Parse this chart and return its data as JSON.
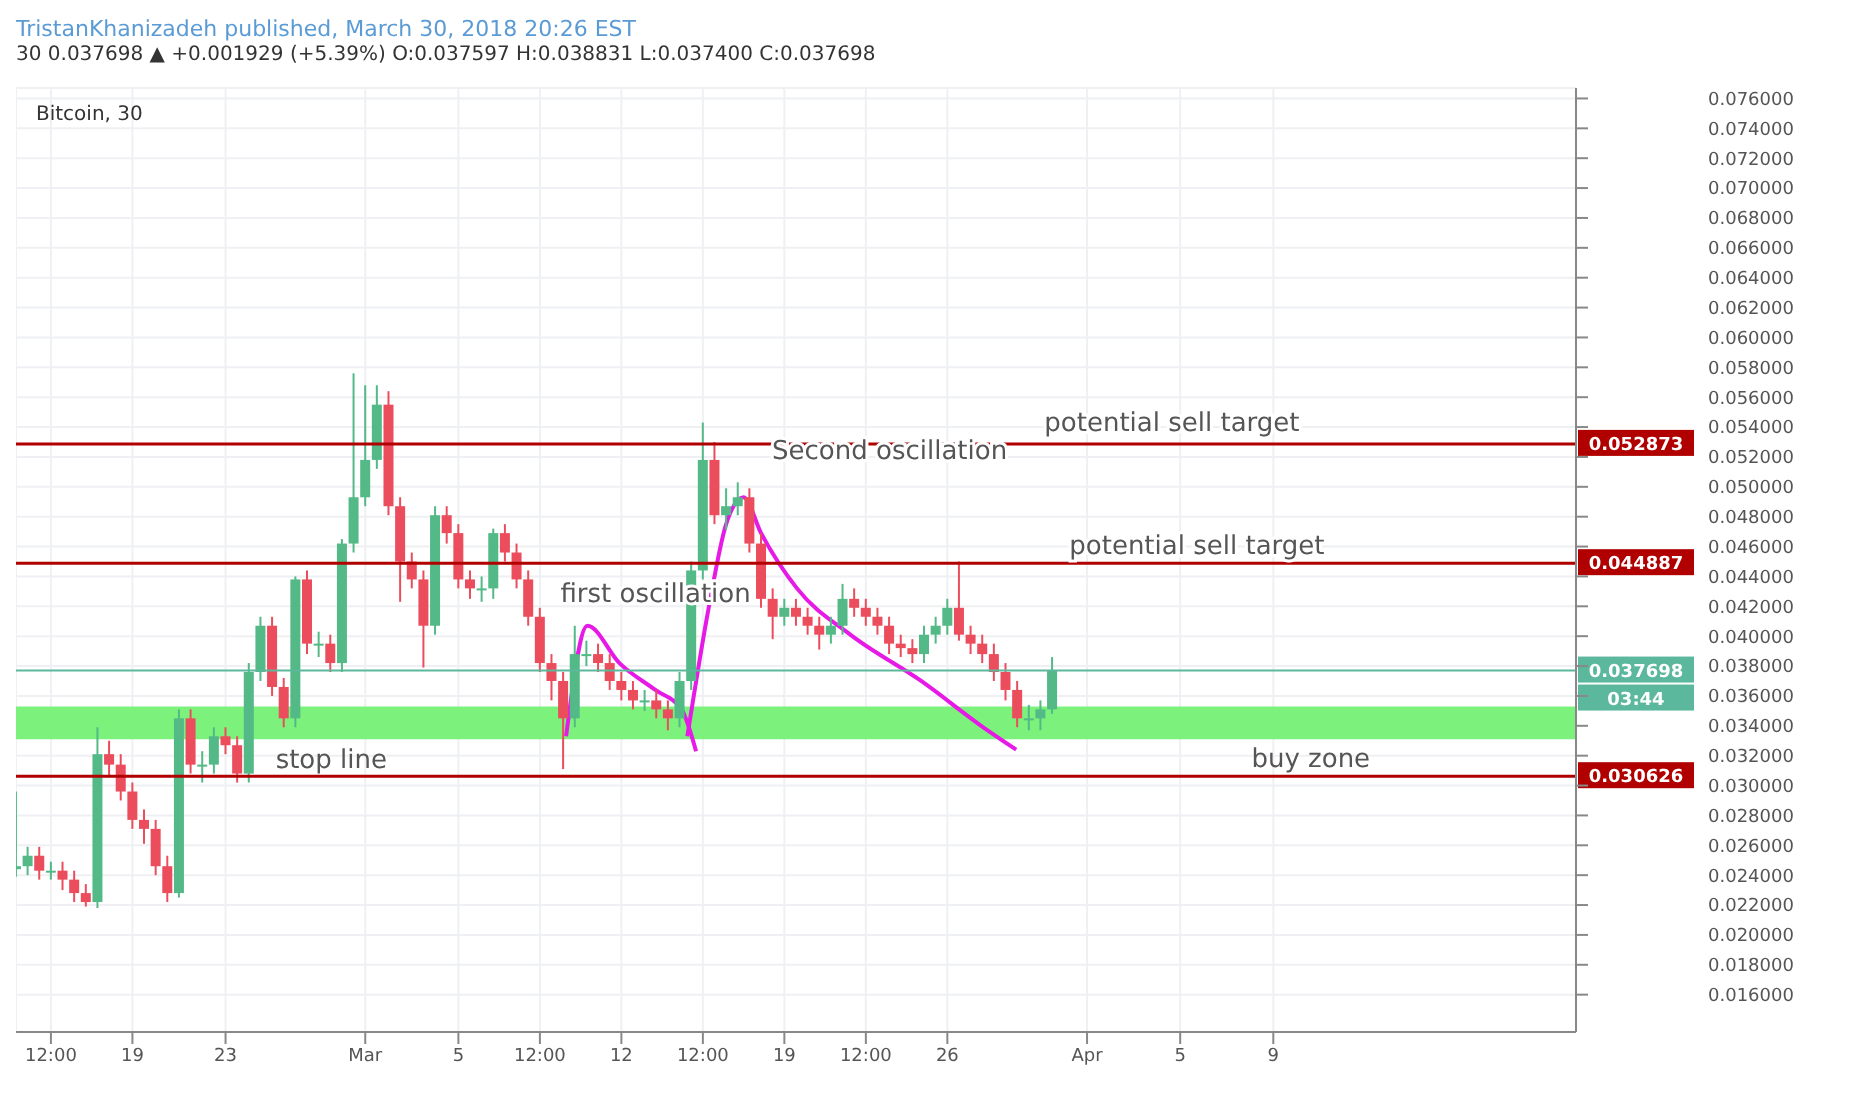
{
  "chart_data": {
    "type": "candlestick",
    "title": "Bitcoin, 30",
    "subtitle": "TristanKhanizadeh published, March 30, 2018 20:26 EST",
    "annotations": [
      "30 0.037698 ▲ +0.001929 (+5.39%) O:0.037597 H:0.038831 L:0.037400 C:0.037698",
      "03:44",
      {
        "text": "stop line",
        "x": "2018-02-27T13:00",
        "y": 0.0312
      },
      "first oscillation",
      "Second oscillation",
      "potential sell target",
      "potential sell target"
    ],
    "x": [
      "2018-02-14T00:00",
      "2018-02-14T12:00",
      "2018-02-15T00:00",
      "2018-02-15T12:00",
      "2018-02-16T00:00",
      "2018-02-16T12:00",
      "2018-02-17T00:00",
      "2018-02-17T12:00",
      "2018-02-18T00:00",
      "2018-02-18T12:00",
      "2018-02-19T00:00",
      "2018-02-19T12:00",
      "2018-02-20T00:00",
      "2018-02-20T12:00",
      "2018-02-21T00:00",
      "2018-02-21T12:00",
      "2018-02-22T00:00",
      "2018-02-22T12:00",
      "2018-02-23T00:00",
      "2018-02-23T12:00",
      "2018-02-24T00:00",
      "2018-02-24T12:00",
      "2018-02-25T00:00",
      "2018-02-25T12:00",
      "2018-02-26T00:00",
      "2018-02-26T12:00",
      "2018-02-27T00:00",
      "2018-02-27T12:00",
      "2018-02-28T00:00",
      "2018-02-28T12:00",
      "2018-03-01T00:00",
      "2018-03-01T12:00",
      "2018-03-02T00:00",
      "2018-03-02T12:00",
      "2018-03-03T00:00",
      "2018-03-03T12:00",
      "2018-03-04T00:00",
      "2018-03-04T12:00",
      "2018-03-05T00:00",
      "2018-03-05T12:00",
      "2018-03-06T00:00",
      "2018-03-06T12:00",
      "2018-03-07T00:00",
      "2018-03-07T12:00",
      "2018-03-08T00:00",
      "2018-03-08T12:00",
      "2018-03-09T00:00",
      "2018-03-09T12:00",
      "2018-03-10T00:00",
      "2018-03-10T12:00",
      "2018-03-11T00:00",
      "2018-03-11T12:00",
      "2018-03-12T00:00",
      "2018-03-12T12:00",
      "2018-03-13T00:00",
      "2018-03-13T12:00",
      "2018-03-14T00:00",
      "2018-03-14T12:00",
      "2018-03-15T00:00",
      "2018-03-15T12:00",
      "2018-03-16T00:00",
      "2018-03-16T12:00",
      "2018-03-17T00:00",
      "2018-03-17T12:00",
      "2018-03-18T00:00",
      "2018-03-18T12:00",
      "2018-03-19T00:00",
      "2018-03-19T12:00",
      "2018-03-20T00:00",
      "2018-03-20T12:00",
      "2018-03-21T00:00",
      "2018-03-21T12:00",
      "2018-03-22T00:00",
      "2018-03-22T12:00",
      "2018-03-23T00:00",
      "2018-03-23T12:00",
      "2018-03-24T00:00",
      "2018-03-24T12:00",
      "2018-03-25T00:00",
      "2018-03-25T12:00",
      "2018-03-26T00:00",
      "2018-03-26T12:00",
      "2018-03-27T00:00",
      "2018-03-27T12:00",
      "2018-03-28T00:00",
      "2018-03-28T12:00",
      "2018-03-29T00:00",
      "2018-03-29T12:00",
      "2018-03-30T00:00",
      "2018-03-30T12:00"
    ],
    "ohlc": [
      [
        0.0244,
        0.0296,
        0.0239,
        0.0246
      ],
      [
        0.0246,
        0.0259,
        0.024,
        0.0253
      ],
      [
        0.0253,
        0.0259,
        0.0237,
        0.0243
      ],
      [
        0.0243,
        0.0249,
        0.0237,
        0.0243
      ],
      [
        0.0243,
        0.0249,
        0.023,
        0.0237
      ],
      [
        0.0237,
        0.0243,
        0.0222,
        0.0228
      ],
      [
        0.0228,
        0.0234,
        0.0219,
        0.0222
      ],
      [
        0.0222,
        0.0339,
        0.0218,
        0.0321
      ],
      [
        0.0321,
        0.033,
        0.0306,
        0.0314
      ],
      [
        0.0314,
        0.0321,
        0.029,
        0.0296
      ],
      [
        0.0296,
        0.0302,
        0.0271,
        0.0277
      ],
      [
        0.0277,
        0.0284,
        0.0261,
        0.0271
      ],
      [
        0.0271,
        0.0277,
        0.024,
        0.0246
      ],
      [
        0.0246,
        0.0253,
        0.0222,
        0.0228
      ],
      [
        0.0228,
        0.0351,
        0.0225,
        0.0345
      ],
      [
        0.0345,
        0.0351,
        0.0308,
        0.0314
      ],
      [
        0.0314,
        0.0323,
        0.0302,
        0.0314
      ],
      [
        0.0314,
        0.0339,
        0.0308,
        0.0333
      ],
      [
        0.0333,
        0.0339,
        0.0321,
        0.0327
      ],
      [
        0.0327,
        0.0333,
        0.0302,
        0.0308
      ],
      [
        0.0308,
        0.0382,
        0.0302,
        0.0376
      ],
      [
        0.0376,
        0.0413,
        0.037,
        0.0407
      ],
      [
        0.0407,
        0.0413,
        0.036,
        0.0366
      ],
      [
        0.0366,
        0.0372,
        0.0339,
        0.0345
      ],
      [
        0.0345,
        0.044,
        0.0339,
        0.0438
      ],
      [
        0.0438,
        0.0444,
        0.0388,
        0.0395
      ],
      [
        0.0395,
        0.0403,
        0.0386,
        0.0395
      ],
      [
        0.0395,
        0.0401,
        0.0376,
        0.0382
      ],
      [
        0.0382,
        0.0465,
        0.0376,
        0.0462
      ],
      [
        0.0462,
        0.0576,
        0.0456,
        0.0493
      ],
      [
        0.0493,
        0.0568,
        0.0487,
        0.0518
      ],
      [
        0.0518,
        0.0568,
        0.0512,
        0.0555
      ],
      [
        0.0555,
        0.0564,
        0.0481,
        0.0487
      ],
      [
        0.0487,
        0.0493,
        0.0423,
        0.045
      ],
      [
        0.045,
        0.0456,
        0.0432,
        0.0438
      ],
      [
        0.0438,
        0.0444,
        0.0379,
        0.0407
      ],
      [
        0.0407,
        0.0487,
        0.0401,
        0.0481
      ],
      [
        0.0481,
        0.0487,
        0.0462,
        0.0469
      ],
      [
        0.0469,
        0.0475,
        0.0432,
        0.0438
      ],
      [
        0.0438,
        0.0444,
        0.0425,
        0.0432
      ],
      [
        0.0432,
        0.044,
        0.0423,
        0.0432
      ],
      [
        0.0432,
        0.0472,
        0.0425,
        0.0469
      ],
      [
        0.0469,
        0.0475,
        0.045,
        0.0456
      ],
      [
        0.0456,
        0.0462,
        0.0432,
        0.0438
      ],
      [
        0.0438,
        0.0444,
        0.0407,
        0.0413
      ],
      [
        0.0413,
        0.0419,
        0.0376,
        0.0382
      ],
      [
        0.0382,
        0.0388,
        0.0357,
        0.037
      ],
      [
        0.037,
        0.0376,
        0.0311,
        0.0345
      ],
      [
        0.0345,
        0.0407,
        0.0339,
        0.0388
      ],
      [
        0.0388,
        0.0397,
        0.038,
        0.0388
      ],
      [
        0.0388,
        0.0395,
        0.0376,
        0.0382
      ],
      [
        0.0382,
        0.0388,
        0.0364,
        0.037
      ],
      [
        0.037,
        0.0376,
        0.0357,
        0.0364
      ],
      [
        0.0364,
        0.037,
        0.0351,
        0.0357
      ],
      [
        0.0357,
        0.0364,
        0.035,
        0.0357
      ],
      [
        0.0357,
        0.0364,
        0.0345,
        0.0351
      ],
      [
        0.0351,
        0.0357,
        0.0337,
        0.0345
      ],
      [
        0.0345,
        0.0376,
        0.0339,
        0.037
      ],
      [
        0.037,
        0.045,
        0.0364,
        0.0444
      ],
      [
        0.0444,
        0.0543,
        0.0438,
        0.0518
      ],
      [
        0.0518,
        0.053,
        0.0475,
        0.0481
      ],
      [
        0.0481,
        0.0499,
        0.0471,
        0.0487
      ],
      [
        0.0487,
        0.0503,
        0.0481,
        0.0493
      ],
      [
        0.0493,
        0.0499,
        0.0456,
        0.0462
      ],
      [
        0.0462,
        0.0469,
        0.0419,
        0.0425
      ],
      [
        0.0425,
        0.0432,
        0.0398,
        0.0413
      ],
      [
        0.0413,
        0.0425,
        0.0407,
        0.0419
      ],
      [
        0.0419,
        0.0425,
        0.0407,
        0.0413
      ],
      [
        0.0413,
        0.0419,
        0.0401,
        0.0407
      ],
      [
        0.0407,
        0.0413,
        0.0391,
        0.0401
      ],
      [
        0.0401,
        0.0413,
        0.0395,
        0.0407
      ],
      [
        0.0407,
        0.0435,
        0.0401,
        0.0425
      ],
      [
        0.0425,
        0.0432,
        0.0413,
        0.0419
      ],
      [
        0.0419,
        0.0425,
        0.0407,
        0.0413
      ],
      [
        0.0413,
        0.0419,
        0.0401,
        0.0407
      ],
      [
        0.0407,
        0.0413,
        0.0388,
        0.0395
      ],
      [
        0.0395,
        0.0401,
        0.0386,
        0.0392
      ],
      [
        0.0392,
        0.0398,
        0.0382,
        0.0388
      ],
      [
        0.0388,
        0.0407,
        0.0382,
        0.0401
      ],
      [
        0.0401,
        0.0413,
        0.0395,
        0.0407
      ],
      [
        0.0407,
        0.0425,
        0.0401,
        0.0419
      ],
      [
        0.0419,
        0.045,
        0.0397,
        0.0401
      ],
      [
        0.0401,
        0.0407,
        0.0388,
        0.0395
      ],
      [
        0.0395,
        0.0401,
        0.0382,
        0.0388
      ],
      [
        0.0388,
        0.0395,
        0.037,
        0.0376
      ],
      [
        0.0376,
        0.0382,
        0.0357,
        0.0364
      ],
      [
        0.0364,
        0.037,
        0.0339,
        0.0345
      ],
      [
        0.0345,
        0.0354,
        0.0337,
        0.0345
      ],
      [
        0.0345,
        0.0357,
        0.0337,
        0.0351
      ],
      [
        0.0351,
        0.0386,
        0.0348,
        0.037698
      ]
    ],
    "series": [
      {
        "type": "line",
        "color": "#e619e6",
        "x": [
          "2018-03-09T15:00",
          "2018-03-10T13:00",
          "2018-03-11T22:00",
          "2018-03-13T11:00",
          "2018-03-14T14:00",
          "2018-03-15T05:00"
        ],
        "values": [
          0.0333,
          0.0407,
          0.0382,
          0.0364,
          0.0351,
          0.0323
        ]
      },
      {
        "type": "line",
        "color": "#e619e6",
        "x": [
          "2018-03-14T20:00",
          "2018-03-15T18:00",
          "2018-03-16T12:00",
          "2018-03-17T06:00",
          "2018-03-18T00:00",
          "2018-03-19T13:00",
          "2018-03-21T20:00",
          "2018-03-24T21:00",
          "2018-03-27T13:00",
          "2018-03-28T23:00"
        ],
        "values": [
          0.0333,
          0.0419,
          0.0475,
          0.0493,
          0.0469,
          0.0432,
          0.0401,
          0.037,
          0.0339,
          0.0324
        ]
      }
    ],
    "ref_lines": [
      {
        "axis": "y",
        "value": 0.052873,
        "label": "0.052873",
        "color": "#b00000",
        "line_style": "solid"
      },
      {
        "axis": "y",
        "value": 0.044887,
        "label": "0.044887",
        "color": "#b00000",
        "line_style": "solid"
      },
      {
        "axis": "y",
        "value": 0.030626,
        "label": "0.030626",
        "color": "#b00000",
        "line_style": "solid"
      },
      {
        "axis": "y",
        "value": 0.037698,
        "label": "0.037698",
        "color": "#5cb89c",
        "line_style": "solid"
      }
    ],
    "bands": [
      {
        "axis": "y",
        "from": 0.0331,
        "to": 0.0353,
        "label": "buy zone",
        "color": "#7cf27c"
      }
    ],
    "xlim": [
      "2018-02-14T00:00",
      "2018-04-22T00:00"
    ],
    "xticks": [
      {
        "value": "2018-02-15T12:00",
        "label": "12:00"
      },
      {
        "value": "2018-02-19T00:00",
        "label": "19"
      },
      {
        "value": "2018-02-23T00:00",
        "label": "23"
      },
      {
        "value": "2018-03-01T00:00",
        "label": "Mar"
      },
      {
        "value": "2018-03-05T00:00",
        "label": "5"
      },
      {
        "value": "2018-03-08T12:00",
        "label": "12:00"
      },
      {
        "value": "2018-03-12T00:00",
        "label": "12"
      },
      {
        "value": "2018-03-15T12:00",
        "label": "12:00"
      },
      {
        "value": "2018-03-19T00:00",
        "label": "19"
      },
      {
        "value": "2018-03-22T12:00",
        "label": "12:00"
      },
      {
        "value": "2018-03-26T00:00",
        "label": "26"
      },
      {
        "value": "2018-04-01T00:00",
        "label": "Apr"
      },
      {
        "value": "2018-04-05T00:00",
        "label": "5"
      },
      {
        "value": "2018-04-09T00:00",
        "label": "9"
      }
    ],
    "ylim": [
      0.0135,
      0.0767
    ],
    "yticks": [
      {
        "value": 0.016,
        "label": "0.016000"
      },
      {
        "value": 0.018,
        "label": "0.018000"
      },
      {
        "value": 0.02,
        "label": "0.020000"
      },
      {
        "value": 0.022,
        "label": "0.022000"
      },
      {
        "value": 0.024,
        "label": "0.024000"
      },
      {
        "value": 0.026,
        "label": "0.026000"
      },
      {
        "value": 0.028,
        "label": "0.028000"
      },
      {
        "value": 0.03,
        "label": "0.030000"
      },
      {
        "value": 0.032,
        "label": "0.032000"
      },
      {
        "value": 0.034,
        "label": "0.034000"
      },
      {
        "value": 0.036,
        "label": "0.036000"
      },
      {
        "value": 0.038,
        "label": "0.038000"
      },
      {
        "value": 0.04,
        "label": "0.040000"
      },
      {
        "value": 0.042,
        "label": "0.042000"
      },
      {
        "value": 0.044,
        "label": "0.044000"
      },
      {
        "value": 0.046,
        "label": "0.046000"
      },
      {
        "value": 0.048,
        "label": "0.048000"
      },
      {
        "value": 0.05,
        "label": "0.050000"
      },
      {
        "value": 0.052,
        "label": "0.052000"
      },
      {
        "value": 0.054,
        "label": "0.054000"
      },
      {
        "value": 0.056,
        "label": "0.056000"
      },
      {
        "value": 0.058,
        "label": "0.058000"
      },
      {
        "value": 0.06,
        "label": "0.060000"
      },
      {
        "value": 0.062,
        "label": "0.062000"
      },
      {
        "value": 0.064,
        "label": "0.064000"
      },
      {
        "value": 0.066,
        "label": "0.066000"
      },
      {
        "value": 0.068,
        "label": "0.068000"
      },
      {
        "value": 0.07,
        "label": "0.070000"
      },
      {
        "value": 0.072,
        "label": "0.072000"
      },
      {
        "value": 0.074,
        "label": "0.074000"
      },
      {
        "value": 0.076,
        "label": "0.076000"
      }
    ],
    "grid": true
  }
}
